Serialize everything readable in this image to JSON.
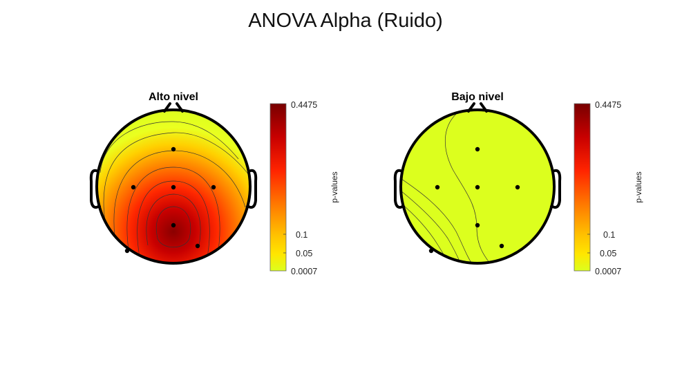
{
  "figure": {
    "title": "ANOVA Alpha (Ruido)"
  },
  "chart_data": [
    {
      "type": "heatmap",
      "subtype": "topographic-scalp-map",
      "title": "Alto nivel",
      "colorbar": {
        "label": "p-values",
        "ticks": [
          "0.4475",
          "0.1",
          "0.05",
          "0.0007"
        ],
        "range": [
          0.0007,
          0.4475
        ],
        "colormap": [
          "#dcff1e",
          "#ffd400",
          "#ff8a00",
          "#ff2a00",
          "#cc0000",
          "#7a0000"
        ]
      },
      "electrodes": [
        {
          "value": 0.16
        },
        {
          "value": 0.18
        },
        {
          "value": 0.26
        },
        {
          "value": 0.1
        },
        {
          "value": 0.44
        },
        {
          "value": 0.12
        },
        {
          "value": 0.3
        }
      ]
    },
    {
      "type": "heatmap",
      "subtype": "topographic-scalp-map",
      "title": "Bajo nivel",
      "colorbar": {
        "label": "p-values",
        "ticks": [
          "0.4475",
          "0.1",
          "0.05",
          "0.0007"
        ],
        "range": [
          0.0007,
          0.4475
        ],
        "colormap": [
          "#dcff1e",
          "#ffd400",
          "#ff8a00",
          "#ff2a00",
          "#cc0000",
          "#7a0000"
        ]
      },
      "electrodes": [
        {
          "value": 0.002
        },
        {
          "value": 0.004
        },
        {
          "value": 0.002
        },
        {
          "value": 0.002
        },
        {
          "value": 0.002
        },
        {
          "value": 0.002
        },
        {
          "value": 0.002
        }
      ]
    }
  ]
}
